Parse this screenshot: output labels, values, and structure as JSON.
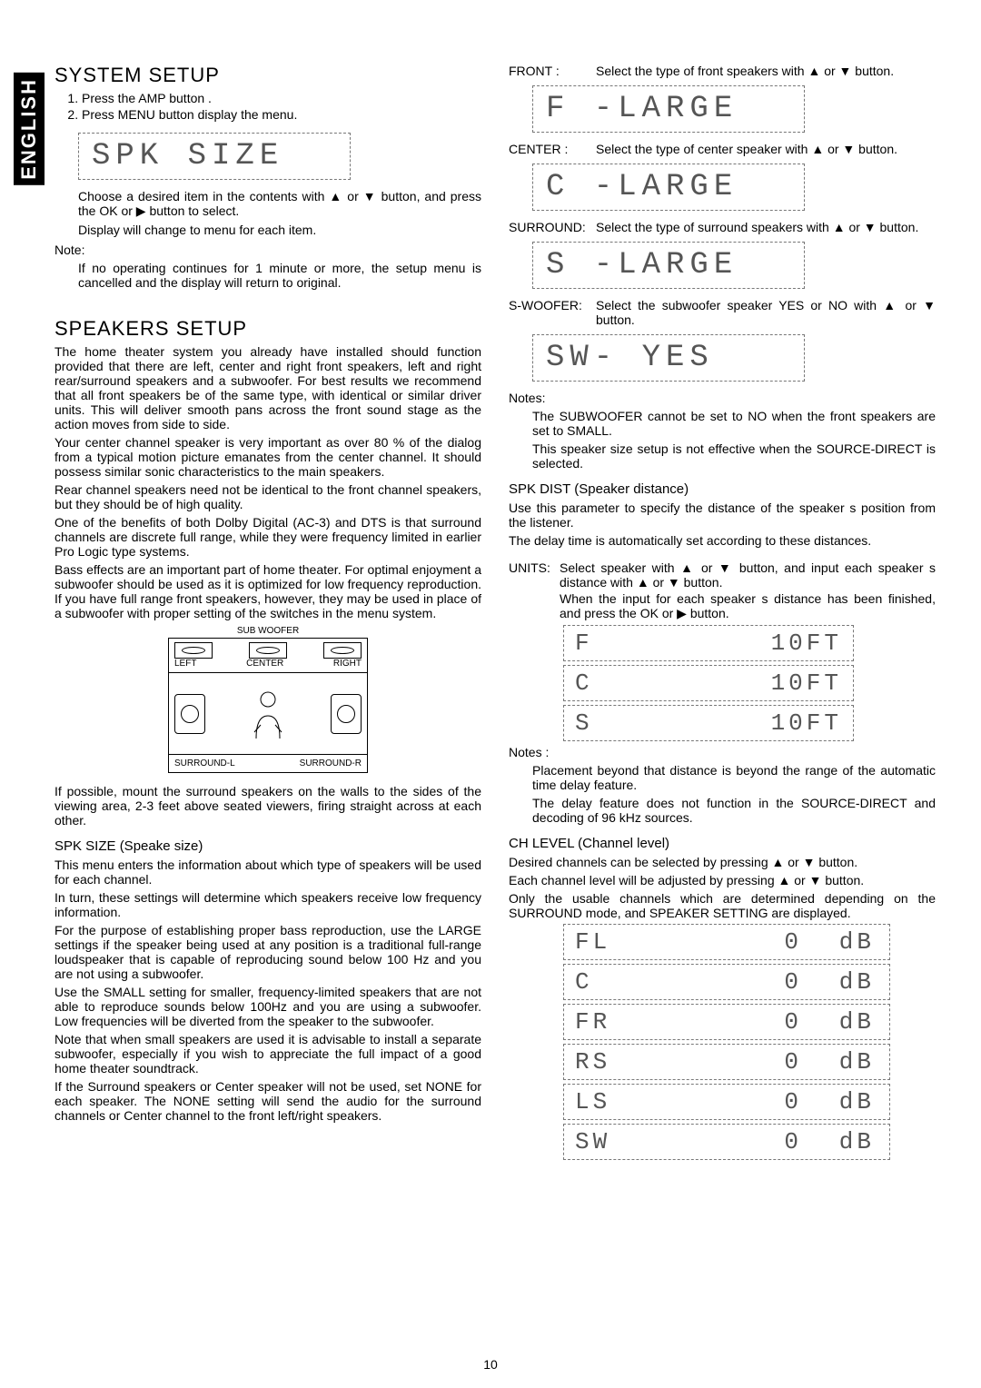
{
  "sideTab": "ENGLISH",
  "pageNumber": "10",
  "left": {
    "h1": "SYSTEM SETUP",
    "step1": "Press the AMP button     .",
    "step2": "Press MENU button      display the menu.",
    "lcd1": "SPK  SIZE",
    "p1": "Choose a desired item in the contents with ▲ or ▼ button, and press the OK or ▶ button to select.",
    "p2": "Display will change to menu for each item.",
    "noteLabel": "Note:",
    "p3": "If no operating continues for 1 minute or more, the setup menu is cancelled and the display will return to original.",
    "h2": "SPEAKERS SETUP",
    "p4": "The home theater system you already have installed should function provided that there are left, center and right front speakers, left and right rear/surround speakers and a subwoofer. For best results we recommend that all front speakers be of the same type, with identical or similar driver units. This will deliver smooth pans across the front sound stage as the action moves from side to side.",
    "p5": "Your center channel speaker is very important as over 80 % of the dialog from a typical motion picture emanates from the center channel. It should possess similar sonic characteristics to the main speakers.",
    "p6": "Rear channel speakers need not be identical to the front channel speakers, but they should be of high quality.",
    "p7": "One of the benefits of both Dolby Digital (AC-3) and DTS is that surround channels are discrete full range, while they were frequency limited in earlier  Pro Logic  type systems.",
    "p8": "Bass effects are an important part of home theater. For optimal enjoyment a subwoofer should be used as it is optimized for low frequency reproduction. If you have full range front speakers, however, they may be used in place of a subwoofer with proper setting of the switches in the menu system.",
    "diagram": {
      "subwoofer": "SUB WOOFER",
      "left": "LEFT",
      "center": "CENTER",
      "right": "RIGHT",
      "sl": "SURROUND-L",
      "sr": "SURROUND-R"
    },
    "p9": "If possible, mount the surround speakers on the walls to the sides of the viewing area, 2-3 feet above seated viewers, firing straight across at each other.",
    "sh1": "SPK SIZE (Speake size)",
    "p10": "This menu enters the information about which type of speakers will be used for each channel.",
    "p11": "In turn, these settings will determine which speakers receive low frequency information.",
    "p12": "For the purpose of establishing proper bass reproduction, use the LARGE settings if the speaker being used at any position is a traditional full-range loudspeaker that is capable of reproducing sound below 100 Hz and you are not using a subwoofer.",
    "p13": "Use the SMALL setting for smaller, frequency-limited speakers that are not able to reproduce sounds below 100Hz and you are using a subwoofer. Low frequencies will be diverted from the speaker to the subwoofer.",
    "p14": "Note that when  small  speakers are used it is advisable to install a separate subwoofer, especially if you wish to appreciate the full impact of a good home theater soundtrack.",
    "p15": "If the Surround speakers or Center speaker will not be used, set NONE for each speaker. The NONE setting will send the audio for the surround channels or Center channel to the front left/right speakers."
  },
  "right": {
    "frontLabel": "FRONT :",
    "frontTxt": "Select the type of front speakers with ▲ or ▼ button.",
    "lcdF": "F -LARGE",
    "centerLabel": "CENTER :",
    "centerTxt": "Select the type of center speaker with ▲ or ▼ button.",
    "lcdC": "C -LARGE",
    "surroundLabel": "SURROUND:",
    "surroundTxt": "Select the type of surround speakers with ▲ or ▼ button.",
    "lcdS": "S -LARGE",
    "swLabel": "S-WOOFER:",
    "swTxt": "Select the subwoofer speaker YES or NO with ▲ or ▼ button.",
    "lcdSW": "SW- YES",
    "notes1Label": "Notes:",
    "note1a": "The SUBWOOFER cannot be set to NO when the front speakers are set to SMALL.",
    "note1b": "This speaker size setup is not effective when the SOURCE-DIRECT is selected.",
    "sh2": "SPK DIST (Speaker distance)",
    "p16": "Use this parameter to specify the distance of the speaker s position from the listener.",
    "p17": "The delay time is automatically set according to these distances.",
    "unitsLabel": "UNITS:",
    "unitsTxt1": "Select speaker with ▲ or ▼ button, and input each speaker s distance with ▲ or ▼ button.",
    "unitsTxt2": "When the input for each speaker s distance has been finished, and press the OK or ▶ button.",
    "distF": {
      "l": "F",
      "r": "10FT"
    },
    "distC": {
      "l": "C",
      "r": "10FT"
    },
    "distS": {
      "l": "S",
      "r": "10FT"
    },
    "notes2Label": "Notes :",
    "note2a": "Placement beyond that distance is beyond the range of the automatic time delay feature.",
    "note2b": "The delay feature does not function in the SOURCE-DIRECT and decoding of 96 kHz sources.",
    "sh3": "CH LEVEL (Channel level)",
    "p18": "Desired channels can be selected by pressing  ▲ or ▼ button.",
    "p19": "Each channel level will be adjusted by pressing ▲ or ▼ button.",
    "p20": "Only the usable channels which are determined depending on the SURROUND mode, and SPEAKER SETTING are displayed.",
    "lvl": [
      {
        "c": "FL",
        "v": "0",
        "u": "dB"
      },
      {
        "c": "C",
        "v": "0",
        "u": "dB"
      },
      {
        "c": "FR",
        "v": "0",
        "u": "dB"
      },
      {
        "c": "RS",
        "v": "0",
        "u": "dB"
      },
      {
        "c": "LS",
        "v": "0",
        "u": "dB"
      },
      {
        "c": "SW",
        "v": "0",
        "u": "dB"
      }
    ]
  }
}
